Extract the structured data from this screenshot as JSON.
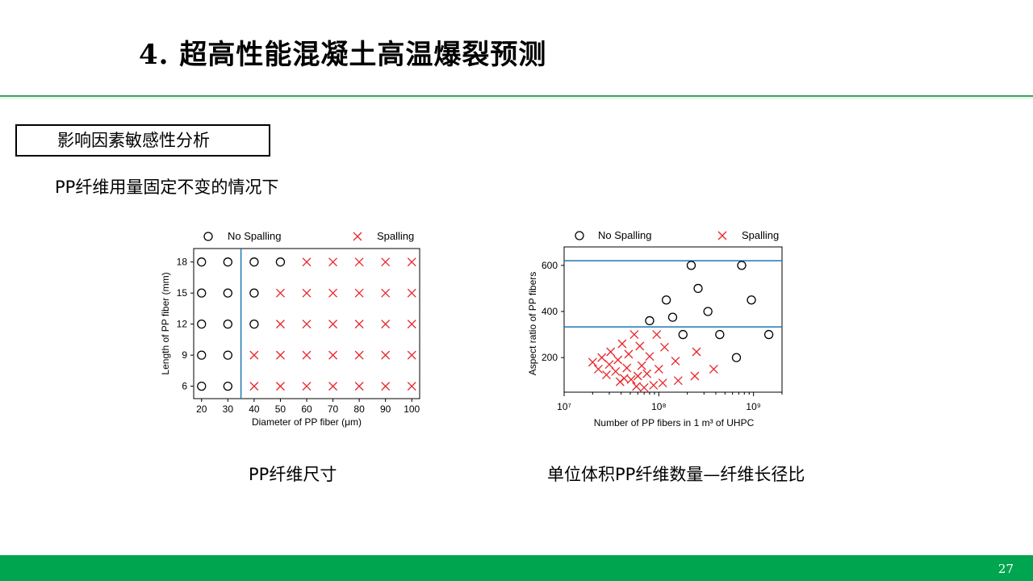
{
  "slide": {
    "title": "4. 超高性能混凝土高温爆裂预测",
    "section_label": "影响因素敏感性分析",
    "subtitle": "PP纤维用量固定不变的情况下",
    "caption_left": "PP纤维尺寸",
    "caption_right": "单位体积PP纤维数量—纤维长径比",
    "page_number": "27",
    "colors": {
      "accent_green": "#00a54f",
      "rule_green": "#3aa45b",
      "spalling": "#e8262b",
      "divider": "#1f77b4"
    }
  },
  "chart_data": [
    {
      "type": "scatter",
      "xlabel": "Diameter of PP fiber (μm)",
      "ylabel": "Length of PP fiber (mm)",
      "x_ticks": [
        20,
        30,
        40,
        50,
        60,
        70,
        80,
        90,
        100
      ],
      "y_ticks": [
        6,
        9,
        12,
        15,
        18
      ],
      "xlim": [
        17,
        103
      ],
      "ylim": [
        4.8,
        19.3
      ],
      "legend": {
        "placement": "top",
        "entries": [
          "No Spalling",
          "Spalling"
        ]
      },
      "divider_x": [
        35
      ],
      "series": [
        {
          "name": "No Spalling",
          "marker": "circle",
          "points": [
            [
              20,
              6
            ],
            [
              20,
              9
            ],
            [
              20,
              12
            ],
            [
              20,
              15
            ],
            [
              20,
              18
            ],
            [
              30,
              6
            ],
            [
              30,
              9
            ],
            [
              30,
              12
            ],
            [
              30,
              15
            ],
            [
              30,
              18
            ],
            [
              40,
              12
            ],
            [
              40,
              15
            ],
            [
              40,
              18
            ],
            [
              50,
              18
            ]
          ]
        },
        {
          "name": "Spalling",
          "marker": "x",
          "points": [
            [
              40,
              6
            ],
            [
              40,
              9
            ],
            [
              50,
              6
            ],
            [
              50,
              9
            ],
            [
              50,
              12
            ],
            [
              50,
              15
            ],
            [
              60,
              6
            ],
            [
              60,
              9
            ],
            [
              60,
              12
            ],
            [
              60,
              15
            ],
            [
              60,
              18
            ],
            [
              70,
              6
            ],
            [
              70,
              9
            ],
            [
              70,
              12
            ],
            [
              70,
              15
            ],
            [
              70,
              18
            ],
            [
              80,
              6
            ],
            [
              80,
              9
            ],
            [
              80,
              12
            ],
            [
              80,
              15
            ],
            [
              80,
              18
            ],
            [
              90,
              6
            ],
            [
              90,
              9
            ],
            [
              90,
              12
            ],
            [
              90,
              15
            ],
            [
              90,
              18
            ],
            [
              100,
              6
            ],
            [
              100,
              9
            ],
            [
              100,
              12
            ],
            [
              100,
              15
            ],
            [
              100,
              18
            ]
          ]
        }
      ]
    },
    {
      "type": "scatter",
      "x_scale": "log",
      "xlabel": "Number of PP fibers in 1 m³ of UHPC",
      "ylabel": "Aspect ratio of PP fibers",
      "x_ticks": [
        "10⁷",
        "10⁸",
        "10⁹"
      ],
      "y_ticks": [
        200,
        400,
        600
      ],
      "xlim": [
        10000000,
        2000000000
      ],
      "ylim": [
        50,
        680
      ],
      "legend": {
        "placement": "top",
        "entries": [
          "No Spalling",
          "Spalling"
        ]
      },
      "divider_y": [
        620,
        333
      ],
      "series": [
        {
          "name": "No Spalling",
          "marker": "circle",
          "points": [
            [
              80000000,
              360
            ],
            [
              120000000,
              450
            ],
            [
              140000000,
              375
            ],
            [
              180000000,
              300
            ],
            [
              220000000,
              600
            ],
            [
              260000000,
              500
            ],
            [
              330000000,
              400
            ],
            [
              440000000,
              300
            ],
            [
              660000000,
              200
            ],
            [
              750000000,
              600
            ],
            [
              950000000,
              450
            ],
            [
              1450000000,
              300
            ]
          ]
        },
        {
          "name": "Spalling",
          "marker": "x",
          "points": [
            [
              20000000,
              180
            ],
            [
              23000000,
              150
            ],
            [
              25000000,
              200
            ],
            [
              28000000,
              125
            ],
            [
              30000000,
              170
            ],
            [
              31000000,
              225
            ],
            [
              35000000,
              140
            ],
            [
              37000000,
              190
            ],
            [
              39000000,
              95
            ],
            [
              41000000,
              260
            ],
            [
              43000000,
              110
            ],
            [
              46000000,
              155
            ],
            [
              48000000,
              215
            ],
            [
              51000000,
              105
            ],
            [
              55000000,
              300
            ],
            [
              58000000,
              75
            ],
            [
              60000000,
              120
            ],
            [
              63000000,
              250
            ],
            [
              66000000,
              165
            ],
            [
              70000000,
              70
            ],
            [
              75000000,
              130
            ],
            [
              80000000,
              205
            ],
            [
              88000000,
              80
            ],
            [
              95000000,
              300
            ],
            [
              100000000,
              150
            ],
            [
              110000000,
              90
            ],
            [
              115000000,
              245
            ],
            [
              150000000,
              185
            ],
            [
              160000000,
              100
            ],
            [
              240000000,
              120
            ],
            [
              250000000,
              225
            ],
            [
              380000000,
              150
            ]
          ]
        }
      ]
    }
  ]
}
